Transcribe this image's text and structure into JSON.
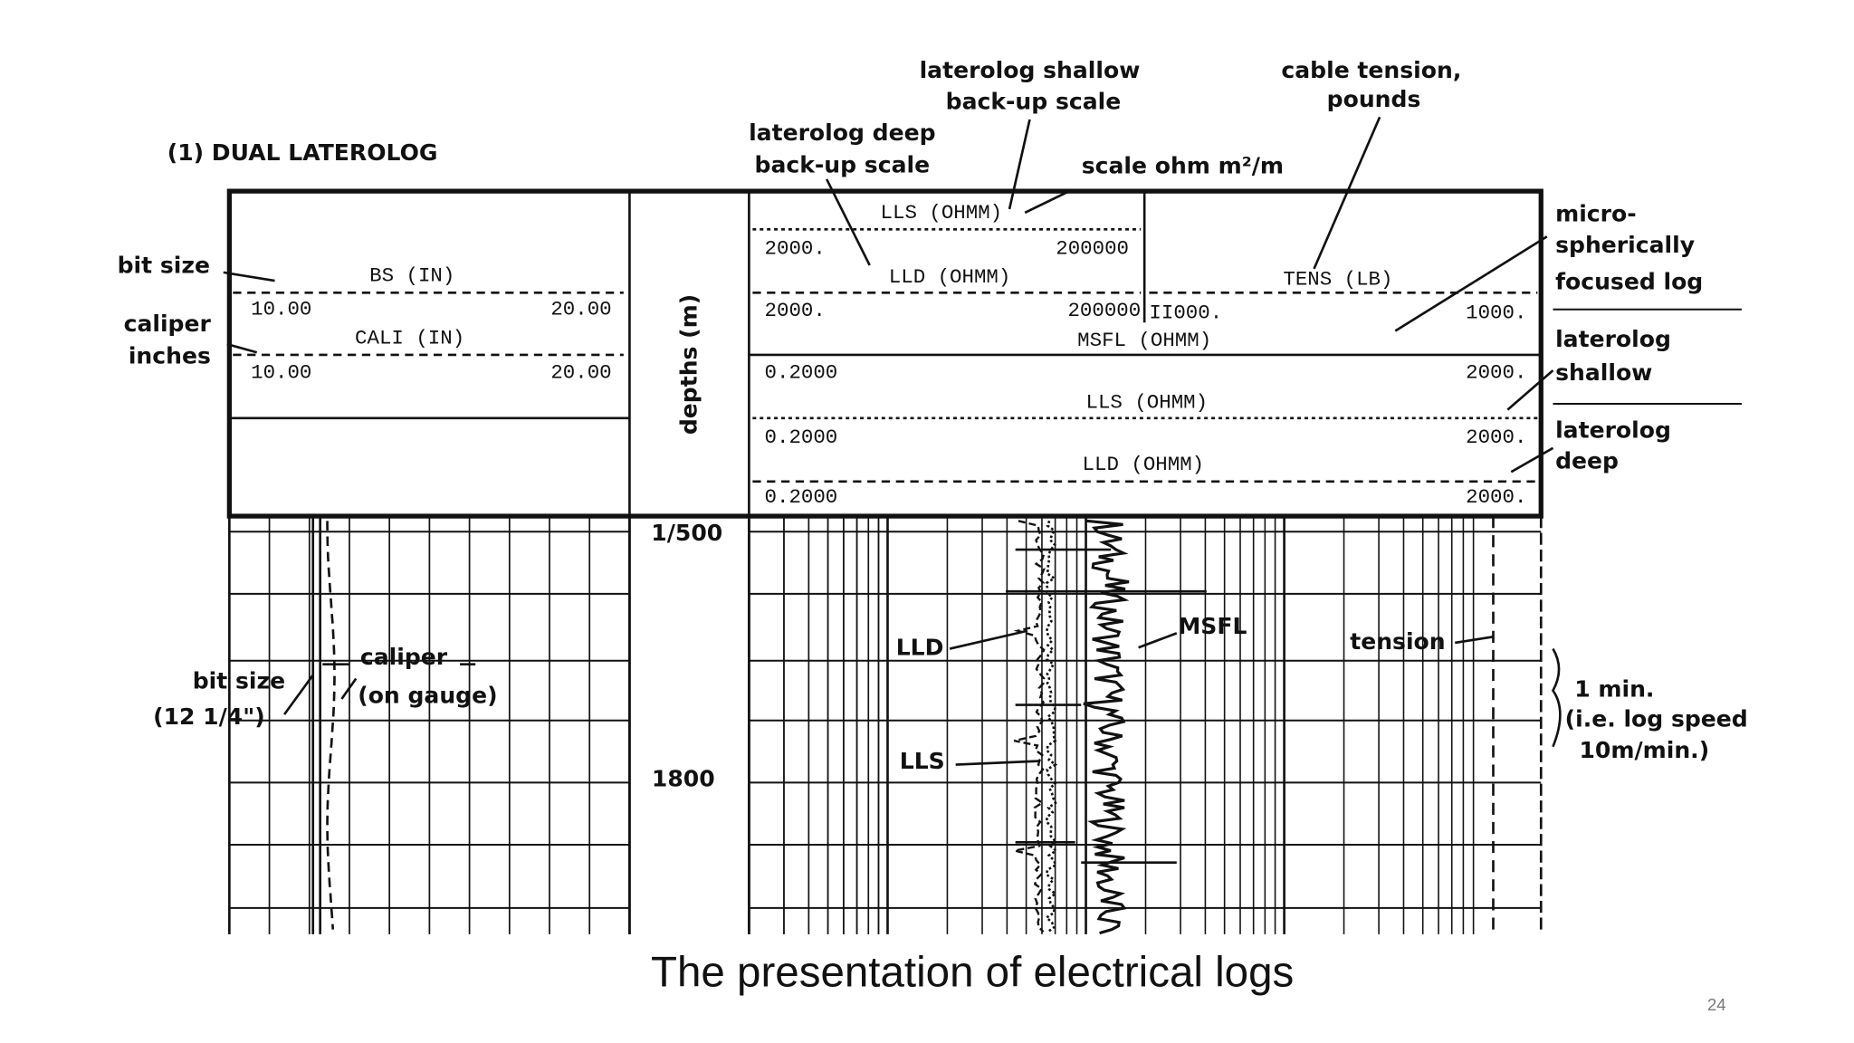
{
  "title": "(1) DUAL LATEROLOG",
  "caption": "The presentation of electrical logs",
  "page_number": "24",
  "header": {
    "bs": {
      "name": "BS (IN)",
      "min": "10.00",
      "max": "20.00"
    },
    "cali": {
      "name": "CALI (IN)",
      "min": "10.00",
      "max": "20.00"
    },
    "lls_backup": {
      "name": "LLS (OHMM)",
      "min": "2000.",
      "max": "200000"
    },
    "lld_backup": {
      "name": "LLD (OHMM)",
      "min": "2000.",
      "max": "200000"
    },
    "tens": {
      "name": "TENS (LB)",
      "min": "II000.",
      "max": "1000."
    },
    "msfl": {
      "name": "MSFL (OHMM)",
      "min": "0.2000",
      "max": "2000."
    },
    "lls": {
      "name": "LLS (OHMM)",
      "min": "0.2000",
      "max": "2000."
    },
    "lld": {
      "name": "LLD (OHMM)",
      "min": "0.2000",
      "max": "2000."
    }
  },
  "depth": {
    "label": "depths (m)",
    "scale": "1/500",
    "marker": "1800"
  },
  "annotations": {
    "bit_size": "bit size",
    "caliper_1": "caliper",
    "caliper_2": "inches",
    "lls_backup_1": "laterolog shallow",
    "lls_backup_2": "back-up scale",
    "lld_backup_1": "laterolog deep",
    "lld_backup_2": "back-up scale",
    "cable_1": "cable tension,",
    "cable_2": "pounds",
    "scale": "scale ohm m²/m",
    "msfl_1": "micro-",
    "msfl_2": "spherically",
    "msfl_3": "focused log",
    "lls_1": "laterolog",
    "lls_2": "shallow",
    "lld_1": "laterolog",
    "lld_2": "deep",
    "bit_size_log_1": "bit size",
    "bit_size_log_2": "(12 1/4\")",
    "caliper_log_1": "caliper",
    "caliper_log_2": "(on gauge)",
    "lld_curve": "LLD",
    "lls_curve": "LLS",
    "msfl_curve": "MSFL",
    "tension_curve": "tension",
    "time_1": "1 min.",
    "time_2": "(i.e. log speed",
    "time_3": "10m/min.)"
  }
}
